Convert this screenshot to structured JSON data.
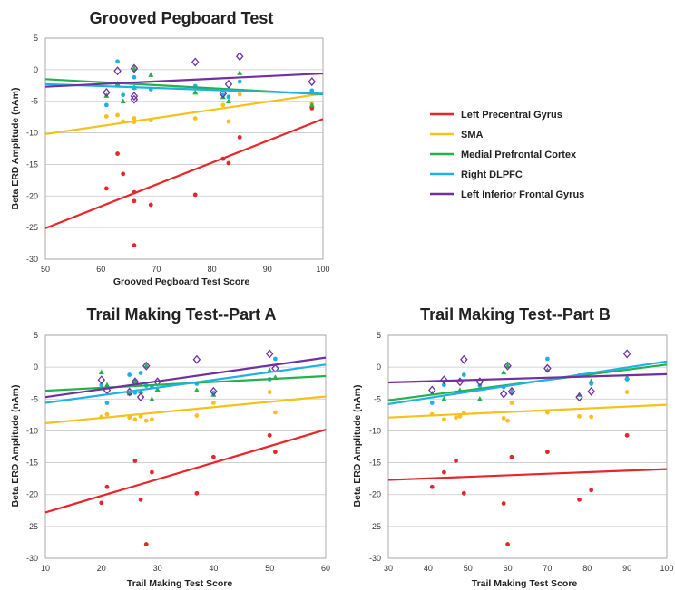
{
  "legend": [
    {
      "name": "Left Precentral Gyrus",
      "color": "#e8262a"
    },
    {
      "name": "SMA",
      "color": "#f5c11a"
    },
    {
      "name": "Medial Prefrontal Cortex",
      "color": "#22b14c"
    },
    {
      "name": "Right DLPFC",
      "color": "#1fb1e6"
    },
    {
      "name": "Left Inferior Frontal Gyrus",
      "color": "#7030a0"
    }
  ],
  "chart_data": [
    {
      "type": "scatter",
      "title": "Grooved Pegboard Test",
      "xlabel": "Grooved Pegboard Test Score",
      "ylabel": "Beta ERD Amplitude (nAm)",
      "xlim": [
        50,
        100
      ],
      "ylim": [
        -30,
        5
      ],
      "xticks": [
        "50",
        "60",
        "70",
        "80",
        "90",
        "100"
      ],
      "yticks": [
        "5",
        "0",
        "-5",
        "-10",
        "-15",
        "-20",
        "-25",
        "-30"
      ],
      "grid": true,
      "series": [
        {
          "name": "Left Precentral Gyrus",
          "color": "#e8262a",
          "marker": "dot",
          "points": [
            [
              61,
              -18.8
            ],
            [
              63,
              -13.3
            ],
            [
              64,
              -16.5
            ],
            [
              66,
              -19.4
            ],
            [
              66,
              -20.8
            ],
            [
              66,
              -27.8
            ],
            [
              69,
              -21.4
            ],
            [
              77,
              -19.8
            ],
            [
              82,
              -14.1
            ],
            [
              83,
              -14.8
            ],
            [
              85,
              -10.7
            ],
            [
              98,
              -6.1
            ]
          ],
          "fit": [
            [
              50,
              -25.1
            ],
            [
              100,
              -7.8
            ]
          ]
        },
        {
          "name": "SMA",
          "color": "#f5c11a",
          "marker": "dot",
          "points": [
            [
              61,
              -7.4
            ],
            [
              63,
              -7.2
            ],
            [
              64,
              -8.2
            ],
            [
              66,
              -7.7
            ],
            [
              66,
              -8.3
            ],
            [
              69,
              -8.0
            ],
            [
              77,
              -7.7
            ],
            [
              82,
              -5.6
            ],
            [
              83,
              -8.2
            ],
            [
              85,
              -3.9
            ],
            [
              98,
              -5.4
            ]
          ],
          "fit": [
            [
              50,
              -10.2
            ],
            [
              100,
              -3.8
            ]
          ]
        },
        {
          "name": "Medial Prefrontal Cortex",
          "color": "#22b14c",
          "marker": "triangle",
          "points": [
            [
              61,
              -4.1
            ],
            [
              63,
              -2.2
            ],
            [
              64,
              -5.0
            ],
            [
              66,
              0.2
            ],
            [
              66,
              -2.8
            ],
            [
              69,
              -0.8
            ],
            [
              77,
              -3.6
            ],
            [
              82,
              -4.3
            ],
            [
              83,
              -5.0
            ],
            [
              85,
              -0.5
            ],
            [
              98,
              -5.6
            ]
          ],
          "fit": [
            [
              50,
              -1.5
            ],
            [
              100,
              -3.9
            ]
          ]
        },
        {
          "name": "Right DLPFC",
          "color": "#1fb1e6",
          "marker": "dot",
          "points": [
            [
              61,
              -5.6
            ],
            [
              63,
              1.3
            ],
            [
              64,
              -4.0
            ],
            [
              66,
              -1.2
            ],
            [
              66,
              -2.9
            ],
            [
              69,
              -3.1
            ],
            [
              77,
              -2.6
            ],
            [
              82,
              -4.0
            ],
            [
              83,
              -4.3
            ],
            [
              85,
              -1.9
            ],
            [
              98,
              -3.3
            ]
          ],
          "fit": [
            [
              50,
              -2.3
            ],
            [
              100,
              -3.8
            ]
          ]
        },
        {
          "name": "Left Inferior Frontal Gyrus",
          "color": "#7030a0",
          "marker": "diamond",
          "points": [
            [
              61,
              -3.6
            ],
            [
              63,
              -0.2
            ],
            [
              66,
              -4.2
            ],
            [
              66,
              0.2
            ],
            [
              66,
              -4.7
            ],
            [
              77,
              1.2
            ],
            [
              82,
              -3.8
            ],
            [
              83,
              -2.3
            ],
            [
              85,
              2.1
            ],
            [
              98,
              -1.9
            ]
          ],
          "fit": [
            [
              50,
              -2.7
            ],
            [
              100,
              -0.6
            ]
          ]
        }
      ]
    },
    {
      "type": "scatter",
      "title": "Trail Making Test--Part A",
      "xlabel": "Trail Making Test Score",
      "ylabel": "Beta ERD Amplitude (nAm)",
      "xlim": [
        10,
        60
      ],
      "ylim": [
        -30,
        5
      ],
      "xticks": [
        "10",
        "20",
        "30",
        "40",
        "50",
        "60"
      ],
      "yticks": [
        "5",
        "0",
        "-5",
        "-10",
        "-15",
        "-20",
        "-25",
        "-30"
      ],
      "grid": true,
      "series": [
        {
          "name": "Left Precentral Gyrus",
          "color": "#e8262a",
          "marker": "dot",
          "points": [
            [
              20,
              -21.3
            ],
            [
              21,
              -18.8
            ],
            [
              26,
              -14.7
            ],
            [
              27,
              -20.8
            ],
            [
              28,
              -27.8
            ],
            [
              29,
              -16.5
            ],
            [
              37,
              -19.8
            ],
            [
              40,
              -14.1
            ],
            [
              50,
              -10.7
            ],
            [
              51,
              -13.3
            ]
          ],
          "fit": [
            [
              10,
              -22.8
            ],
            [
              60,
              -9.8
            ]
          ]
        },
        {
          "name": "SMA",
          "color": "#f5c11a",
          "marker": "dot",
          "points": [
            [
              20,
              -7.8
            ],
            [
              21,
              -7.4
            ],
            [
              25,
              -7.9
            ],
            [
              26,
              -8.2
            ],
            [
              27,
              -7.7
            ],
            [
              28,
              -8.4
            ],
            [
              29,
              -8.2
            ],
            [
              37,
              -7.6
            ],
            [
              40,
              -5.6
            ],
            [
              50,
              -3.9
            ],
            [
              51,
              -7.1
            ]
          ],
          "fit": [
            [
              10,
              -8.8
            ],
            [
              60,
              -4.6
            ]
          ]
        },
        {
          "name": "Medial Prefrontal Cortex",
          "color": "#22b14c",
          "marker": "triangle",
          "points": [
            [
              20,
              -0.8
            ],
            [
              21,
              -2.8
            ],
            [
              25,
              -4.1
            ],
            [
              26,
              -2.2
            ],
            [
              27,
              -3.8
            ],
            [
              28,
              0.2
            ],
            [
              29,
              -5.0
            ],
            [
              30,
              -3.5
            ],
            [
              37,
              -3.6
            ],
            [
              40,
              -4.3
            ],
            [
              50,
              -0.5
            ],
            [
              51,
              -1.6
            ]
          ],
          "fit": [
            [
              10,
              -3.7
            ],
            [
              60,
              -1.4
            ]
          ]
        },
        {
          "name": "Right DLPFC",
          "color": "#1fb1e6",
          "marker": "dot",
          "points": [
            [
              20,
              -2.8
            ],
            [
              21,
              -5.6
            ],
            [
              25,
              -1.2
            ],
            [
              26,
              -4.0
            ],
            [
              27,
              -0.9
            ],
            [
              28,
              -2.9
            ],
            [
              29,
              -3.1
            ],
            [
              37,
              -2.6
            ],
            [
              40,
              -4.0
            ],
            [
              50,
              -1.9
            ],
            [
              51,
              1.3
            ]
          ],
          "fit": [
            [
              10,
              -5.6
            ],
            [
              60,
              0.4
            ]
          ]
        },
        {
          "name": "Left Inferior Frontal Gyrus",
          "color": "#7030a0",
          "marker": "diamond",
          "points": [
            [
              20,
              -2.0
            ],
            [
              21,
              -3.6
            ],
            [
              25,
              -3.9
            ],
            [
              26,
              -2.3
            ],
            [
              27,
              -4.7
            ],
            [
              28,
              0.2
            ],
            [
              30,
              -2.3
            ],
            [
              37,
              1.2
            ],
            [
              40,
              -3.8
            ],
            [
              50,
              2.1
            ],
            [
              51,
              -0.2
            ]
          ],
          "fit": [
            [
              10,
              -4.7
            ],
            [
              60,
              1.5
            ]
          ]
        }
      ]
    },
    {
      "type": "scatter",
      "title": "Trail Making Test--Part B",
      "xlabel": "Trail Making Test Score",
      "ylabel": "Beta ERD Amplitude (nAm)",
      "xlim": [
        30,
        100
      ],
      "ylim": [
        -30,
        5
      ],
      "xticks": [
        "30",
        "40",
        "50",
        "60",
        "70",
        "80",
        "90",
        "100"
      ],
      "yticks": [
        "5",
        "0",
        "-5",
        "-10",
        "-15",
        "-20",
        "-25",
        "-30"
      ],
      "grid": true,
      "series": [
        {
          "name": "Left Precentral Gyrus",
          "color": "#e8262a",
          "marker": "dot",
          "points": [
            [
              41,
              -18.8
            ],
            [
              44,
              -16.5
            ],
            [
              47,
              -14.7
            ],
            [
              49,
              -19.8
            ],
            [
              59,
              -21.4
            ],
            [
              60,
              -27.8
            ],
            [
              61,
              -14.1
            ],
            [
              70,
              -13.3
            ],
            [
              78,
              -20.8
            ],
            [
              81,
              -19.3
            ],
            [
              90,
              -10.7
            ]
          ],
          "fit": [
            [
              30,
              -17.7
            ],
            [
              100,
              -16.0
            ]
          ]
        },
        {
          "name": "SMA",
          "color": "#f5c11a",
          "marker": "dot",
          "points": [
            [
              41,
              -7.4
            ],
            [
              44,
              -8.2
            ],
            [
              47,
              -7.9
            ],
            [
              48,
              -7.7
            ],
            [
              49,
              -7.2
            ],
            [
              59,
              -8.0
            ],
            [
              60,
              -8.4
            ],
            [
              61,
              -5.6
            ],
            [
              70,
              -7.1
            ],
            [
              78,
              -7.7
            ],
            [
              81,
              -7.8
            ],
            [
              90,
              -3.9
            ]
          ],
          "fit": [
            [
              30,
              -7.9
            ],
            [
              100,
              -5.9
            ]
          ]
        },
        {
          "name": "Medial Prefrontal Cortex",
          "color": "#22b14c",
          "marker": "triangle",
          "points": [
            [
              41,
              -4.1
            ],
            [
              44,
              -5.0
            ],
            [
              48,
              -3.6
            ],
            [
              53,
              -5.0
            ],
            [
              59,
              -0.8
            ],
            [
              60,
              0.2
            ],
            [
              61,
              -3.8
            ],
            [
              70,
              -0.5
            ],
            [
              78,
              -4.3
            ],
            [
              81,
              -2.2
            ],
            [
              90,
              -1.6
            ]
          ],
          "fit": [
            [
              30,
              -5.2
            ],
            [
              100,
              0.4
            ]
          ]
        },
        {
          "name": "Right DLPFC",
          "color": "#1fb1e6",
          "marker": "dot",
          "points": [
            [
              41,
              -5.6
            ],
            [
              44,
              -2.8
            ],
            [
              47,
              -4.0
            ],
            [
              49,
              -1.2
            ],
            [
              53,
              -2.9
            ],
            [
              59,
              -3.1
            ],
            [
              61,
              -4.0
            ],
            [
              70,
              1.3
            ],
            [
              78,
              -1.3
            ],
            [
              81,
              -2.6
            ],
            [
              90,
              -1.9
            ]
          ],
          "fit": [
            [
              30,
              -5.8
            ],
            [
              100,
              0.9
            ]
          ]
        },
        {
          "name": "Left Inferior Frontal Gyrus",
          "color": "#7030a0",
          "marker": "diamond",
          "points": [
            [
              41,
              -3.6
            ],
            [
              44,
              -2.0
            ],
            [
              48,
              -2.3
            ],
            [
              49,
              1.2
            ],
            [
              53,
              -2.3
            ],
            [
              59,
              -4.2
            ],
            [
              60,
              0.2
            ],
            [
              61,
              -3.8
            ],
            [
              70,
              -0.2
            ],
            [
              78,
              -4.7
            ],
            [
              81,
              -3.8
            ],
            [
              90,
              2.1
            ]
          ],
          "fit": [
            [
              30,
              -2.4
            ],
            [
              100,
              -1.1
            ]
          ]
        }
      ]
    }
  ]
}
